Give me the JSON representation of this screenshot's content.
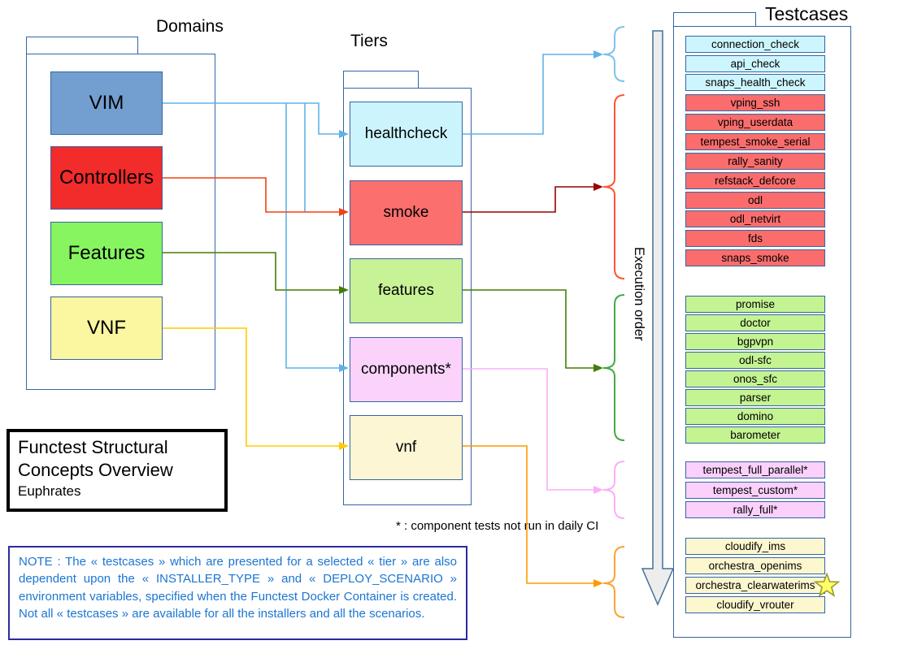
{
  "titles": {
    "domains": "Domains",
    "tiers": "Tiers",
    "testcases": "Testcases"
  },
  "title_box": {
    "line1": "Functest Structural",
    "line2": "Concepts Overview",
    "subtitle": "Euphrates"
  },
  "execution_order_label": "Execution order",
  "asterisk_note": "* : component tests not run in daily CI",
  "note": "NOTE : The « testcases » which are presented for a selected « tier » are also dependent upon the « INSTALLER_TYPE » and « DEPLOY_SCENARIO » environment variables, specified when the Functest Docker Container is created. Not all « testcases » are available for all the installers and all the scenarios.",
  "domains": {
    "items": [
      {
        "label": "VIM",
        "fill": "#729fcf"
      },
      {
        "label": "Controllers",
        "fill": "#f22b2b"
      },
      {
        "label": "Features",
        "fill": "#86f55f"
      },
      {
        "label": "VNF",
        "fill": "#fbf6a0"
      }
    ]
  },
  "tiers": {
    "items": [
      {
        "label": "healthcheck",
        "fill": "#ccf4fd"
      },
      {
        "label": "smoke",
        "fill": "#fc6f6f"
      },
      {
        "label": "features",
        "fill": "#c7f295"
      },
      {
        "label": "components*",
        "fill": "#fad2fa"
      },
      {
        "label": "vnf",
        "fill": "#fcf6d4"
      }
    ]
  },
  "testcases": {
    "starred": "orchestra_clearwaterims",
    "star_icon": "star-icon",
    "groups": [
      {
        "name": "healthcheck",
        "fill": "#cdf5fd",
        "items": [
          "connection_check",
          "api_check",
          "snaps_health_check"
        ]
      },
      {
        "name": "smoke",
        "fill": "#fb6d6d",
        "items": [
          "vping_ssh",
          "vping_userdata",
          "tempest_smoke_serial",
          "rally_sanity",
          "refstack_defcore",
          "odl",
          "odl_netvirt",
          "fds",
          "snaps_smoke"
        ]
      },
      {
        "name": "features",
        "fill": "#c4f392",
        "items": [
          "promise",
          "doctor",
          "bgpvpn",
          "odl-sfc",
          "onos_sfc",
          "parser",
          "domino",
          "barometer"
        ]
      },
      {
        "name": "components",
        "fill": "#fbd0fb",
        "items": [
          "tempest_full_parallel*",
          "tempest_custom*",
          "rally_full*"
        ]
      },
      {
        "name": "vnf",
        "fill": "#fdf7cf",
        "items": [
          "cloudify_ims",
          "orchestra_openims",
          "orchestra_clearwaterims",
          "cloudify_vrouter"
        ]
      }
    ]
  },
  "colors": {
    "box_border": "#3465a4",
    "vim_line": "#5fb2e8",
    "controllers_line": "#f4410e",
    "smoke_out_line": "#990000",
    "features_line": "#447d04",
    "vnf_line": "#ffcc00",
    "vnf_out_line": "#ff9900",
    "components_out_line": "#fbaef8",
    "brace_healthcheck": "#7fc2ec",
    "brace_smoke": "#ff5533",
    "brace_features": "#45a845",
    "brace_components": "#fbaef8",
    "brace_vnf": "#ffa033",
    "execution_arrow_fill": "#ededed",
    "execution_arrow_stroke": "#41719c",
    "note_text": "#1b75d2",
    "star_fill": "#ffff66",
    "star_stroke": "#9a9a30"
  }
}
